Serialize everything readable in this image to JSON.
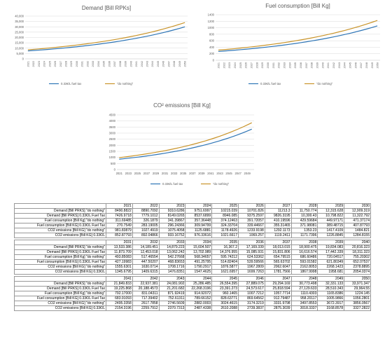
{
  "colors": {
    "series1": "#2e75b6",
    "series2": "#c9942a",
    "grid": "#d9d9d9",
    "axis": "#bfbfbf",
    "text": "#595959"
  },
  "chart_data": [
    {
      "type": "line",
      "title": "Demand [Bill RPKs]",
      "x": [
        "2021",
        "2022",
        "2023",
        "2024",
        "2025",
        "2026",
        "2027",
        "2028",
        "2029",
        "2030",
        "2031",
        "2032",
        "2033",
        "2034",
        "2035",
        "2036",
        "2037",
        "2038",
        "2039",
        "2040",
        "2041",
        "2042",
        "2043",
        "2044",
        "2045",
        "2046",
        "2047",
        "2048",
        "2049",
        "2050"
      ],
      "ylim": [
        0,
        40000
      ],
      "yticks": [
        "0",
        "5,000",
        "10,000",
        "15,000",
        "20,000",
        "25,000",
        "30,000",
        "35,000",
        "40,000"
      ],
      "grid": true,
      "legend": "bottom",
      "series": [
        {
          "name": "0.33€/L fuel tax",
          "values": [
            7426.9718,
            7779.1012,
            8149.0265,
            8537.6899,
            8946.085,
            9375.2597,
            9826.3195,
            10300.43,
            10798.822,
            11322.792,
            11873.709,
            12453.018,
            13062.242,
            13702.989,
            14376.955,
            15085.931,
            15831.806,
            16616.574,
            17442.339,
            18311.323,
            19225.868,
            20188.4573,
            21201.682,
            22268.3196,
            23391.273,
            24573.617,
            25818.594,
            27129.633,
            28510.343,
            29964.55
          ]
        },
        {
          "name": "\"do nothing\"",
          "values": [
            8490.8822,
            8890.7092,
            9310.6286,
            9751.6997,
            10215.039,
            10701.826,
            11213.3,
            11750.774,
            12315.628,
            12909.319,
            13533.386,
            14189.451,
            14879.223,
            15604.507,
            16367.2,
            17169.339,
            18013.015,
            18900.475,
            19834.083,
            20816.323,
            21849.833,
            22937.381,
            24081.902,
            25286.485,
            26554.395,
            27889.075,
            29294.169,
            30773.498,
            32331.133,
            33971.347
          ]
        }
      ]
    },
    {
      "type": "line",
      "title": "Fuel consumption [Bill Kg]",
      "x": [
        "2021",
        "2022",
        "2023",
        "2024",
        "2025",
        "2026",
        "2027",
        "2028",
        "2029",
        "2030",
        "2031",
        "2032",
        "2033",
        "2034",
        "2035",
        "2036",
        "2037",
        "2038",
        "2039",
        "2040",
        "2041",
        "2042",
        "2043",
        "2044",
        "2045",
        "2046",
        "2047",
        "2048",
        "2049",
        "2050"
      ],
      "ylim": [
        0,
        1400
      ],
      "yticks": [
        "0",
        "200",
        "400",
        "600",
        "800",
        "1000",
        "1200",
        "1400"
      ],
      "grid": true,
      "legend": "bottom",
      "series": [
        {
          "name": "0.33€/L fuel tax",
          "values": [
            270.7549,
            283.19005,
            296.24366,
            309.94799,
            324.33704,
            339.44667,
            355.31465,
            371.98081,
            389.48715,
            407.87793,
            427.19983,
            447.50207,
            468.83653,
            491.25795,
            514.82404,
            539.59566,
            565.63702,
            593.01582,
            621.80349,
            652.07537,
            683.91093,
            717.39402,
            752.61311,
            789.66152,
            828.63771,
            869.64562,
            912.79487,
            958.20117,
            1005.9866,
            1056.2801
          ]
        },
        {
          "name": "\"do nothing\"",
          "values": [
            311.69485,
            326.1879,
            341.39867,
            357.36448,
            374.12463,
            391.72057,
            410.19596,
            429.59684,
            449.97171,
            471.37174,
            493.85083,
            517.46554,
            542.27668,
            568.34657,
            595.74212,
            624.53362,
            654.79515,
            686.60486,
            720.04517,
            755.20302,
            792.17,
            831.04311,
            871.92419,
            914.92072,
            960.1465,
            1007.7212,
            1057.7714,
            1110.4303,
            1165.8386,
            1224.145
          ]
        }
      ]
    },
    {
      "type": "line",
      "title": "CO² emissions [Bill Kg]",
      "x": [
        "2021",
        "2022",
        "2023",
        "2024",
        "2025",
        "2026",
        "2027",
        "2028",
        "2029",
        "2030",
        "2031",
        "2032",
        "2033",
        "2034",
        "2035",
        "2036",
        "2037",
        "2038",
        "2039",
        "2040",
        "2041",
        "2042",
        "2043",
        "2044",
        "2045",
        "2046",
        "2047",
        "2048",
        "2049",
        "2050"
      ],
      "xticks": [
        "2021",
        "2023",
        "2025",
        "2027",
        "2029",
        "2031",
        "2033",
        "2035",
        "2037",
        "2039",
        "2041",
        "2043",
        "2045",
        "2047",
        "2049"
      ],
      "ylim": [
        0,
        4500
      ],
      "yticks": [
        "0",
        "500",
        "1000",
        "1500",
        "2000",
        "2500",
        "3000",
        "3500",
        "4000",
        "4500"
      ],
      "grid": true,
      "legend": "bottom",
      "series": [
        {
          "name": "0.33€/L fuel tax",
          "values": [
            852.87793,
            892.04866,
            933.16752,
            976.33616,
            1021.6617,
            1069.257,
            1119.2411,
            1171.7396,
            1226.8845,
            1284.8155,
            1345.6795,
            1409.6315,
            1476.8351,
            1547.4625,
            1621.6957,
            1699.7263,
            1781.7566,
            1867.9998,
            1958.681,
            2054.0374,
            2154.3196,
            2259.7912,
            2370.7313,
            2487.4338,
            2610.2088,
            2739.3837,
            2875.3039,
            3018.3337,
            3168.8578,
            3327.2822
          ]
        },
        {
          "name": "\"do nothing\"",
          "values": [
            981.83879,
            1027.4919,
            1075.4058,
            1125.6881,
            1178.4926,
            1233.9198,
            1292.1173,
            1353.23,
            1417.4109,
            1484.8211,
            1555.6301,
            1630.0714,
            1708.1716,
            1790.2917,
            1876.5877,
            1967.2809,
            2062.6047,
            2162.8053,
            2268.1423,
            2378.8895,
            2495.3358,
            2617.7858,
            2746.5609,
            2882.0003,
            3024.4615,
            3174.3219,
            3331.9798,
            3497.8553,
            3672.3917,
            3856.0567
          ]
        }
      ]
    }
  ],
  "tables": [
    {
      "years": [
        "2021",
        "2022",
        "2023",
        "2024",
        "2025",
        "2026",
        "2027",
        "2028",
        "2029",
        "2030"
      ],
      "rows": [
        {
          "label": "Demand [Bill PRKS] \"do nothing\"",
          "cells": [
            "8490.8822",
            "8890.7092",
            "9310.6286",
            "9751.6997",
            "10215.039",
            "10701.826",
            "11213.3",
            "11,750.774",
            "12,315.628",
            "12,909.319"
          ]
        },
        {
          "label": "Demand [Bill PRKS] 0.33€/L Fuel Tax",
          "cells": [
            "7426.9718",
            "7779.1012",
            "8149.0265",
            "8537.6899",
            "8946.085",
            "9375.2597",
            "9826.3195",
            "10,300.43",
            "10,798.822",
            "11,322.792"
          ]
        },
        {
          "label": "Fuel consumption [Bill Kg] \"do nothing\"",
          "cells": [
            "311.69485",
            "326.1879",
            "341.39867",
            "357.36448",
            "374.12463",
            "391.72057",
            "410.19596",
            "429.59684",
            "449.97171",
            "471.37174"
          ]
        },
        {
          "label": "Fuel consumption [Bill KG] 0.33€/L Fuel Tax",
          "cells": [
            "270.7549",
            "283.19005",
            "296.24366",
            "309.94799",
            "324.33704",
            "339.44667",
            "355.31465",
            "371.98081",
            "389.48715",
            "407.87793"
          ]
        },
        {
          "label": "CO2 emissions [Bill KG] \"do nothing\"",
          "cells": [
            "981.83879",
            "1027.4919",
            "1075.4058",
            "1125.6881",
            "1178.4926",
            "1233.9198",
            "1292.1173",
            "1353.23",
            "1417.4109",
            "1484.821"
          ]
        },
        {
          "label": "CO2 emissions [Bill KG] 0.33€/L",
          "cells": [
            "852.87793",
            "892.04866",
            "933.16752",
            "976.33616",
            "1021.6617",
            "1069.257",
            "1119.2411",
            "1171.7396",
            "1226.8845",
            "1284.8155"
          ]
        }
      ]
    },
    {
      "years": [
        "2031",
        "2032",
        "2033",
        "2034",
        "2035",
        "2036",
        "2037",
        "2038",
        "2039",
        "2040"
      ],
      "rows": [
        {
          "label": "Demand [Bill PRKS] \"do nothing\"",
          "cells": [
            "13,533.386",
            "14,189.451",
            "14,879.223",
            "15,604.507",
            "16,367.2",
            "17,169.339",
            "18,013.015",
            "18,900.475",
            "19,834.083",
            "20,816.323"
          ]
        },
        {
          "label": "Demand [Bill PRKS] 0.33€/L Fuel Tax",
          "cells": [
            "11,873.709",
            "12,453.018",
            "13,062.242",
            "13,702.989",
            "14,376.955",
            "15,085.931",
            "15,831.806",
            "16,616.574",
            "17,442.339",
            "18,311.323"
          ]
        },
        {
          "label": "Fuel consumption [Bill Kg] \"do nothing\"",
          "cells": [
            "493.85083",
            "517.46554",
            "542.27668",
            "568.34657",
            "595.74212",
            "624.53362",
            "654.79515",
            "686.60486",
            "720.04517",
            "755.20302"
          ]
        },
        {
          "label": "Fuel consumption [Bill KG] 0.33€/L Fuel Tax",
          "cells": [
            "427.19983",
            "447.50207",
            "468.83653",
            "491.25795",
            "514.82404",
            "539.59566",
            "565.63702",
            "593.01582",
            "621.80349",
            "652.07537"
          ]
        },
        {
          "label": "CO2 emissions [Bill KG] \"do nothing\"",
          "cells": [
            "1555.6301",
            "1630.0714",
            "1708.1716",
            "1790.2917",
            "1876.5877",
            "1967.2809",
            "2062.6047",
            "2162.8053",
            "2268.1423",
            "2378.8895"
          ]
        },
        {
          "label": "CO2 emissions [Bill KG] 0.33€/L",
          "cells": [
            "1345.6795",
            "1409.6315",
            "1476.8351",
            "1547.4625",
            "1621.6957",
            "1699.7263",
            "1781.7566",
            "1867.9998",
            "1958.681",
            "2054.0374"
          ]
        }
      ]
    },
    {
      "years": [
        "2041",
        "2042",
        "2043",
        "2044",
        "2045",
        "2046",
        "2047",
        "2048",
        "2049",
        "2050"
      ],
      "rows": [
        {
          "label": "Demand [Bill PRKS] \"do nothing\"",
          "cells": [
            "21,849.833",
            "22,937.381",
            "24,081.902",
            "25,286.485",
            "26,554.395",
            "27,889.075",
            "29,294.169",
            "30,773.498",
            "32,331.133",
            "33,971.347"
          ]
        },
        {
          "label": "Demand [Bill PRKS] 0.33€/L Fuel Tax",
          "cells": [
            "19,225.868",
            "20,188.4573",
            "21,201.682",
            "22,268.3196",
            "23,391.273",
            "24,573.617",
            "25,818.594",
            "27,129.633",
            "28,510.343",
            "29,964.55"
          ]
        },
        {
          "label": "Fuel consumption [Bill Kg] \"do nothing\"",
          "cells": [
            "792.17000",
            "831.04311",
            "871.92419",
            "914.92072",
            "960.1465",
            "1007.7212",
            "1057.7714",
            "1110.4303",
            "1165.8386",
            "1224.145"
          ]
        },
        {
          "label": "Fuel consumption [Bill KG] 0.33€/L Fuel Tax",
          "cells": [
            "683.91093",
            "717.39402",
            "752.61311",
            "789.66152",
            "828.63771",
            "869.64562",
            "912.79487",
            "958.20117",
            "1005.9866",
            "1056.2801"
          ]
        },
        {
          "label": "CO2 emissions [Bill KG] \"do nothing\"",
          "cells": [
            "2495.3358",
            "2617.7858",
            "2746.5609",
            "2882.0003",
            "3024.4615",
            "3174.3219",
            "3331.9798",
            "3497.8553",
            "3672.3917",
            "3856.0567"
          ]
        },
        {
          "label": "CO2 emissions [Bill KG] 0.33€/L",
          "cells": [
            "2154.3196",
            "2259.7912",
            "2370.7313",
            "2487.4338",
            "2610.2088",
            "2739.3837",
            "2875.3039",
            "3018.3337",
            "3168.8578",
            "3327.2822"
          ]
        }
      ]
    }
  ]
}
